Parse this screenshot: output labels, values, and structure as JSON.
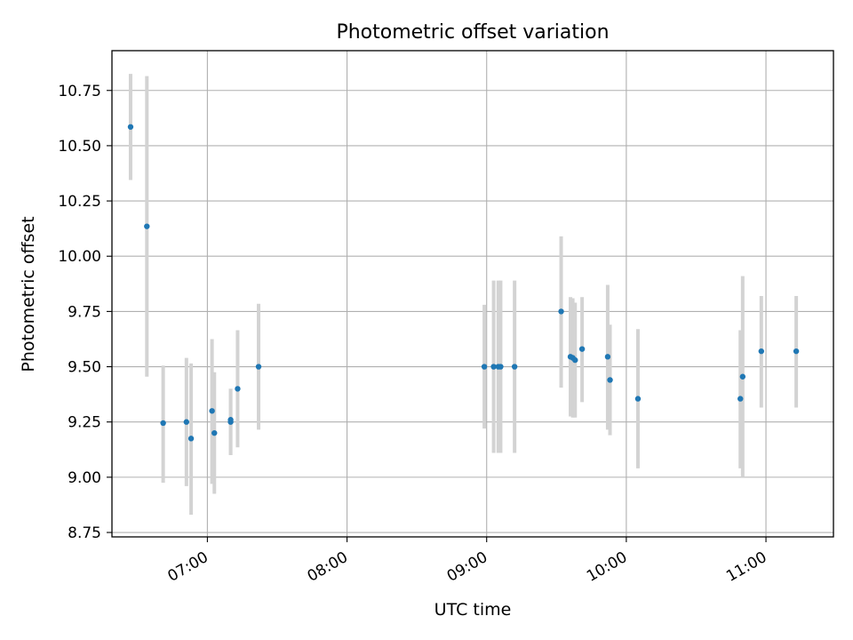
{
  "chart_data": {
    "type": "scatter",
    "title": "Photometric offset variation",
    "xlabel": "UTC time",
    "ylabel": "Photometric offset",
    "xlim": [
      "06:19",
      "11:29"
    ],
    "ylim": [
      8.73,
      10.93
    ],
    "x_ticks": [
      "07:00",
      "08:00",
      "09:00",
      "10:00",
      "11:00"
    ],
    "y_ticks": [
      8.75,
      9.0,
      9.25,
      9.5,
      9.75,
      10.0,
      10.25,
      10.5,
      10.75
    ],
    "y_tick_labels": [
      "8.75",
      "9.00",
      "9.25",
      "9.50",
      "9.75",
      "10.00",
      "10.25",
      "10.50",
      "10.75"
    ],
    "grid": true,
    "marker_color": "#1f77b4",
    "errorbar_color": "#d3d3d3",
    "points": [
      {
        "time": "06:27",
        "y": 10.585,
        "ylo": 10.345,
        "yhi": 10.825
      },
      {
        "time": "06:34",
        "y": 10.135,
        "ylo": 9.455,
        "yhi": 10.815
      },
      {
        "time": "06:41",
        "y": 9.245,
        "ylo": 8.975,
        "yhi": 9.505
      },
      {
        "time": "06:51",
        "y": 9.25,
        "ylo": 8.96,
        "yhi": 9.54
      },
      {
        "time": "06:53",
        "y": 9.175,
        "ylo": 8.83,
        "yhi": 9.515
      },
      {
        "time": "07:02",
        "y": 9.3,
        "ylo": 8.97,
        "yhi": 9.625
      },
      {
        "time": "07:03",
        "y": 9.2,
        "ylo": 8.925,
        "yhi": 9.475
      },
      {
        "time": "07:10",
        "y": 9.26,
        "ylo": 9.1,
        "yhi": 9.4
      },
      {
        "time": "07:10",
        "y": 9.25,
        "ylo": 9.1,
        "yhi": 9.4
      },
      {
        "time": "07:13",
        "y": 9.4,
        "ylo": 9.135,
        "yhi": 9.665
      },
      {
        "time": "07:22",
        "y": 9.5,
        "ylo": 9.215,
        "yhi": 9.785
      },
      {
        "time": "08:59",
        "y": 9.5,
        "ylo": 9.22,
        "yhi": 9.78
      },
      {
        "time": "09:03",
        "y": 9.5,
        "ylo": 9.11,
        "yhi": 9.89
      },
      {
        "time": "09:05",
        "y": 9.5,
        "ylo": 9.11,
        "yhi": 9.89
      },
      {
        "time": "09:06",
        "y": 9.5,
        "ylo": 9.11,
        "yhi": 9.89
      },
      {
        "time": "09:12",
        "y": 9.5,
        "ylo": 9.11,
        "yhi": 9.89
      },
      {
        "time": "09:32",
        "y": 9.75,
        "ylo": 9.405,
        "yhi": 10.09
      },
      {
        "time": "09:36",
        "y": 9.545,
        "ylo": 9.275,
        "yhi": 9.815
      },
      {
        "time": "09:37",
        "y": 9.54,
        "ylo": 9.27,
        "yhi": 9.81
      },
      {
        "time": "09:38",
        "y": 9.53,
        "ylo": 9.27,
        "yhi": 9.79
      },
      {
        "time": "09:41",
        "y": 9.58,
        "ylo": 9.34,
        "yhi": 9.815
      },
      {
        "time": "09:52",
        "y": 9.545,
        "ylo": 9.215,
        "yhi": 9.87
      },
      {
        "time": "09:53",
        "y": 9.44,
        "ylo": 9.19,
        "yhi": 9.69
      },
      {
        "time": "10:05",
        "y": 9.355,
        "ylo": 9.04,
        "yhi": 9.67
      },
      {
        "time": "10:49",
        "y": 9.355,
        "ylo": 9.04,
        "yhi": 9.665
      },
      {
        "time": "10:50",
        "y": 9.455,
        "ylo": 9.0,
        "yhi": 9.91
      },
      {
        "time": "10:58",
        "y": 9.57,
        "ylo": 9.315,
        "yhi": 9.82
      },
      {
        "time": "11:13",
        "y": 9.57,
        "ylo": 9.315,
        "yhi": 9.82
      }
    ]
  }
}
